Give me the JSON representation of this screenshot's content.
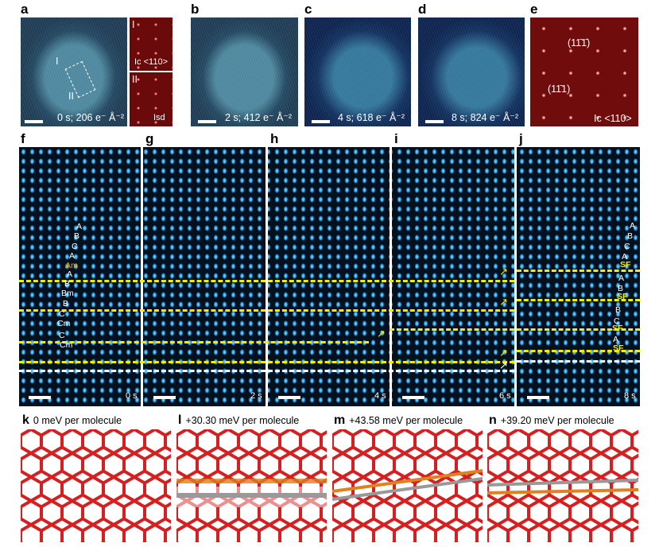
{
  "top_row": [
    {
      "label": "a",
      "caption": "0 s; 206 e⁻ Å⁻²",
      "region_labels": [
        "I",
        "II"
      ],
      "insets": [
        {
          "numeral": "I",
          "text": "Ic <110>"
        },
        {
          "numeral": "II",
          "text": "Isd"
        }
      ]
    },
    {
      "label": "b",
      "caption": "2 s; 412 e⁻ Å⁻²"
    },
    {
      "label": "c",
      "caption": "4 s; 618 e⁻ Å⁻²"
    },
    {
      "label": "d",
      "caption": "8 s; 824 e⁻ Å⁻²"
    },
    {
      "label": "e",
      "spot1": "(11̄1̄)",
      "spot2": "(11̄1)",
      "caption": "Ic <110>"
    }
  ],
  "middle_row": [
    {
      "label": "f",
      "time": "0 s",
      "stacking": [
        "A",
        "B",
        "C",
        "A",
        "Am",
        "A",
        "B",
        "Bm",
        "B",
        "C",
        "Cm",
        "C",
        "Cm"
      ]
    },
    {
      "label": "g",
      "time": "2 s"
    },
    {
      "label": "h",
      "time": "4 s"
    },
    {
      "label": "i",
      "time": "6 s"
    },
    {
      "label": "j",
      "time": "8 s",
      "stacking": [
        "A",
        "B",
        "C",
        "A",
        "SF",
        "A",
        "B",
        "SF",
        "B",
        "C",
        "SF",
        "A",
        "SF"
      ]
    }
  ],
  "bottom_row": [
    {
      "label": "k",
      "text": "0 meV per molecule"
    },
    {
      "label": "l",
      "text": "+30.30 meV per molecule"
    },
    {
      "label": "m",
      "text": "+43.58 meV per molecule"
    },
    {
      "label": "n",
      "text": "+39.20 meV per molecule"
    }
  ],
  "colors": {
    "dash": "#f5ec00",
    "am_label": "#f0a020",
    "lattice": "#d42020",
    "defect": "#e08020"
  }
}
